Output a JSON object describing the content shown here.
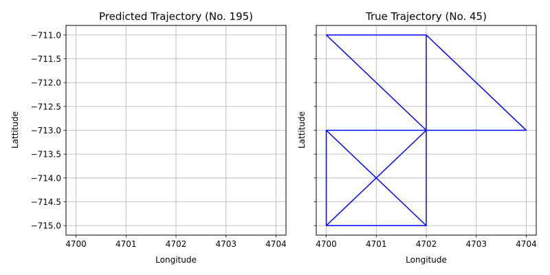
{
  "chart_data": [
    {
      "type": "line",
      "title": "Predicted Trajectory (No. 195)",
      "xlabel": "Longitude",
      "ylabel": "Lattitude",
      "xlim": [
        4699.8,
        4704.2
      ],
      "ylim": [
        -715.2,
        -710.8
      ],
      "xticks": [
        4700,
        4701,
        4702,
        4703,
        4704
      ],
      "xtick_labels": [
        "4700",
        "4701",
        "4702",
        "4703",
        "4704"
      ],
      "yticks": [
        -711.0,
        -711.5,
        -712.0,
        -712.5,
        -713.0,
        -713.5,
        -714.0,
        -714.5,
        -715.0
      ],
      "ytick_labels": [
        "−711.0",
        "−711.5",
        "−712.0",
        "−712.5",
        "−713.0",
        "−713.5",
        "−714.0",
        "−714.5",
        "−715.0"
      ],
      "show_ytick_labels": true,
      "grid": true,
      "series": [
        {
          "color": "#0000ff",
          "points": []
        }
      ]
    },
    {
      "type": "line",
      "title": "True Trajectory (No. 45)",
      "xlabel": "Longitude",
      "ylabel": "Lattitude",
      "xlim": [
        4699.8,
        4704.2
      ],
      "ylim": [
        -715.2,
        -710.8
      ],
      "xticks": [
        4700,
        4701,
        4702,
        4703,
        4704
      ],
      "xtick_labels": [
        "4700",
        "4701",
        "4702",
        "4703",
        "4704"
      ],
      "yticks": [
        -711.0,
        -711.5,
        -712.0,
        -712.5,
        -713.0,
        -713.5,
        -714.0,
        -714.5,
        -715.0
      ],
      "ytick_labels": [],
      "show_ytick_labels": false,
      "grid": true,
      "series": [
        {
          "color": "#0000ff",
          "points": [
            [
              4700,
              -711
            ],
            [
              4702,
              -711
            ],
            [
              4704,
              -713
            ],
            [
              4702,
              -713
            ],
            [
              4700,
              -711
            ],
            [
              4702,
              -713
            ],
            [
              4700,
              -715
            ],
            [
              4700,
              -713
            ],
            [
              4702,
              -715
            ],
            [
              4700,
              -715
            ],
            [
              4700,
              -713
            ],
            [
              4702,
              -713
            ],
            [
              4702,
              -715
            ],
            [
              4702,
              -711
            ],
            [
              4702,
              -713
            ],
            [
              4704,
              -713
            ]
          ]
        }
      ]
    }
  ]
}
